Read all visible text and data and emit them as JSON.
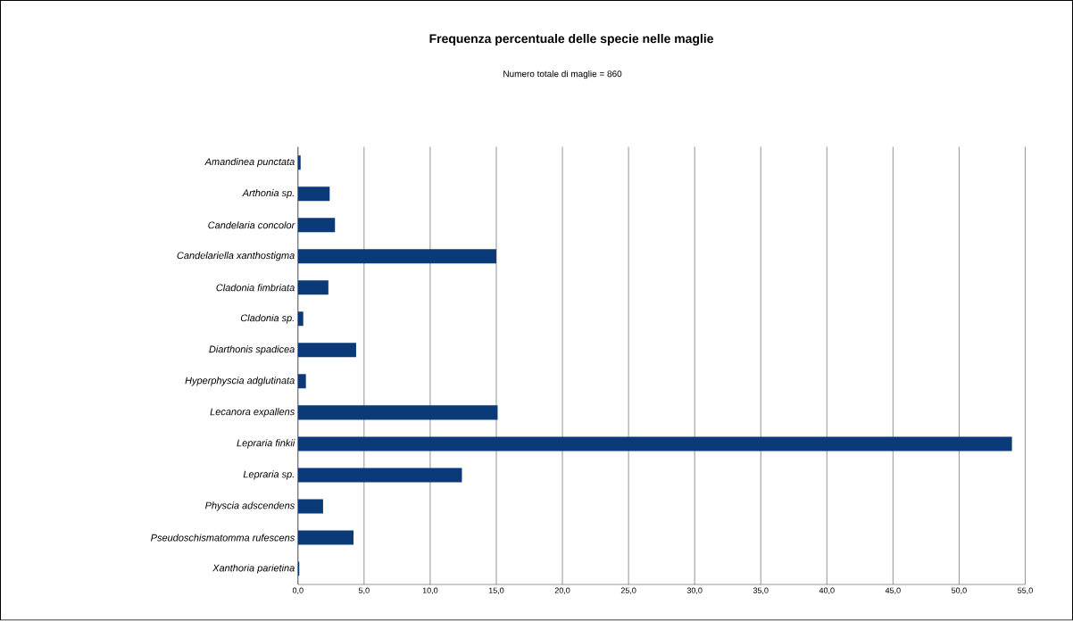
{
  "chart_data": {
    "type": "bar",
    "orientation": "horizontal",
    "title": "Frequenza percentuale delle specie nelle maglie",
    "subtitle": "Numero totale di maglie = 860",
    "categories": [
      "Amandinea punctata",
      "Arthonia sp.",
      "Candelaria concolor",
      "Candelariella xanthostigma",
      "Cladonia fimbriata",
      "Cladonia sp.",
      "Diarthonis spadicea",
      "Hyperphyscia adglutinata",
      "Lecanora expallens",
      "Lepraria finkii",
      "Lepraria sp.",
      "Physcia adscendens",
      "Pseudoschismatomma rufescens",
      "Xanthoria parietina"
    ],
    "values": [
      0.2,
      2.4,
      2.8,
      15.0,
      2.3,
      0.4,
      4.4,
      0.6,
      15.1,
      54.0,
      12.4,
      1.9,
      4.2,
      0.1
    ],
    "color": "#0b3a78",
    "xlim": [
      0,
      55
    ],
    "xticks": [
      {
        "value": 0,
        "label": "0,0"
      },
      {
        "value": 5,
        "label": "5,0"
      },
      {
        "value": 10,
        "label": "10,0"
      },
      {
        "value": 15,
        "label": "15,0"
      },
      {
        "value": 20,
        "label": "20,0"
      },
      {
        "value": 25,
        "label": "25,0"
      },
      {
        "value": 30,
        "label": "30,0"
      },
      {
        "value": 35,
        "label": "35,0"
      },
      {
        "value": 40,
        "label": "40,0"
      },
      {
        "value": 45,
        "label": "45,0"
      },
      {
        "value": 50,
        "label": "50,0"
      },
      {
        "value": 55,
        "label": "55,0"
      }
    ],
    "grid": "x"
  }
}
